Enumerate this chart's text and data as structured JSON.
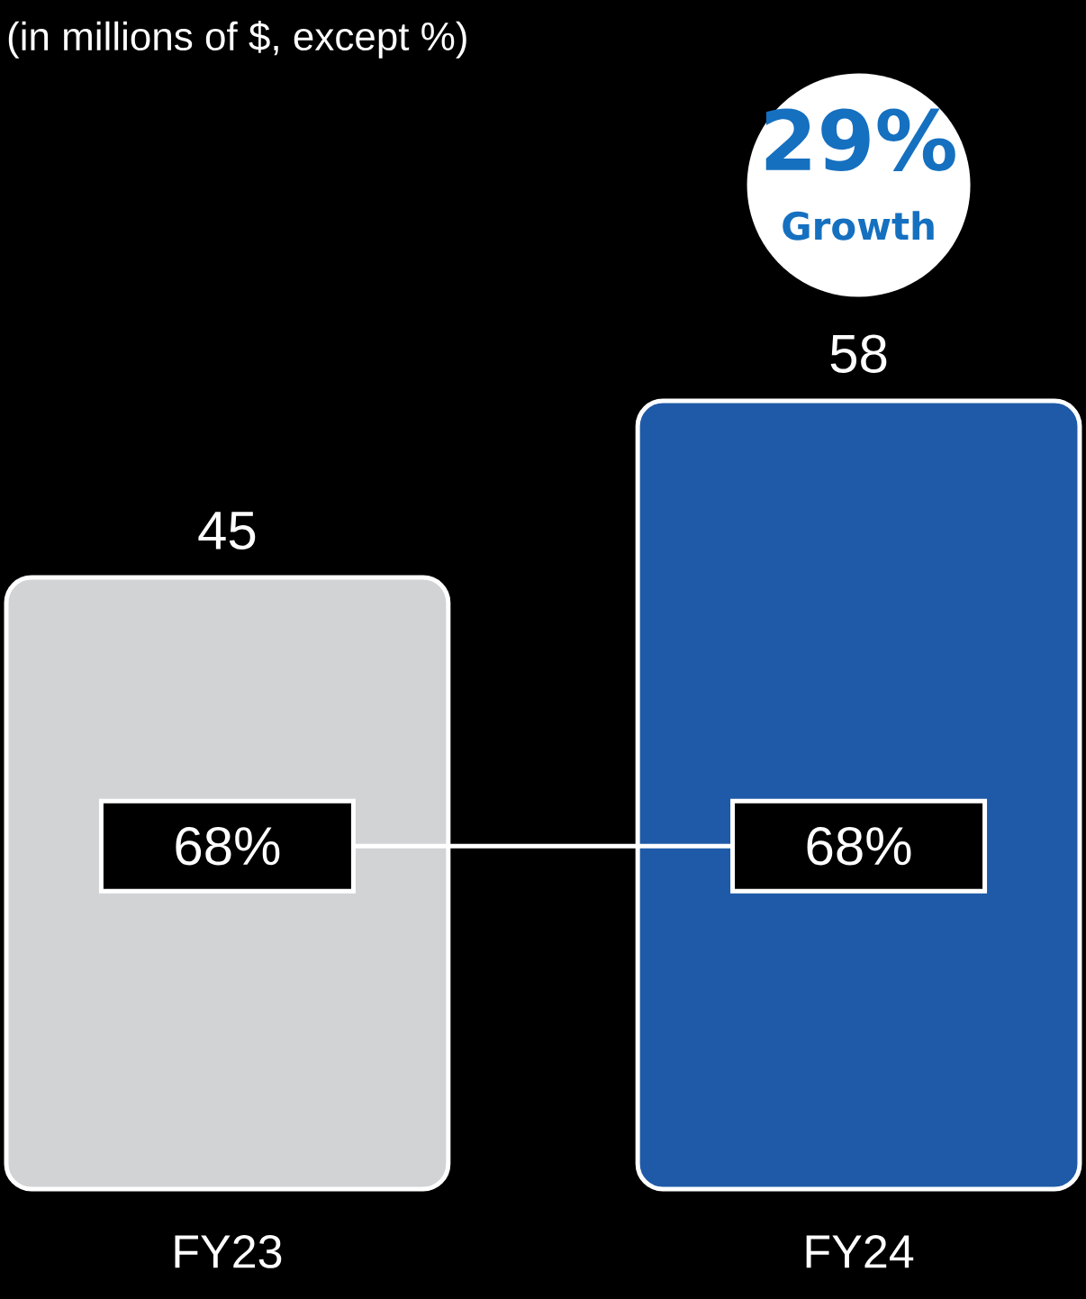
{
  "chart_data": {
    "type": "bar",
    "title": "(in millions of $, except %)",
    "categories": [
      "FY23",
      "FY24"
    ],
    "values": [
      45,
      58
    ],
    "colors": [
      "#d1d3d4",
      "#1f5aa8"
    ],
    "data_labels": true,
    "tick_labels": "x",
    "annotations": [
      "29%",
      "Growth",
      "68%",
      "68%"
    ]
  }
}
